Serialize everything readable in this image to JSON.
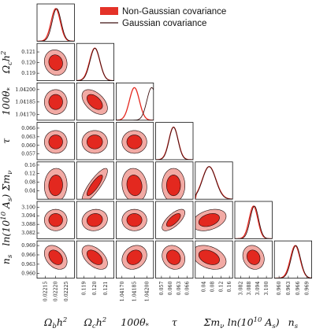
{
  "chart_data": {
    "type": "triangle-plot",
    "title": "",
    "legend": {
      "placement": "top-right",
      "entries": [
        {
          "label": "Non-Gaussian covariance",
          "style": "filled-box",
          "color": "#e43228"
        },
        {
          "label": "Gaussian covariance",
          "style": "line",
          "color": "#5a1616"
        }
      ]
    },
    "colors": {
      "inner_fill": "#e3281f",
      "outer_fill": "#f2aaa4",
      "contour_line": "#1a0808",
      "ng_curve": "#e5281f",
      "g_curve": "#3d1010"
    },
    "parameters": [
      {
        "label": "Ω_b h^2",
        "label_text": "Ωbh2",
        "ticks": [
          "0.02215",
          "0.02220",
          "0.02225"
        ],
        "tick_values": [
          0.02215,
          0.0222,
          0.02225
        ],
        "range": [
          0.02211,
          0.02229
        ],
        "mean": 0.0222,
        "sigma": 2.2e-05
      },
      {
        "label": "Ω_c h^2",
        "label_text": "Ωch2",
        "ticks": [
          "0.119",
          "0.120",
          "0.121"
        ],
        "tick_values": [
          0.119,
          0.12,
          0.121
        ],
        "range": [
          0.1183,
          0.1218
        ],
        "mean": 0.12,
        "sigma": 0.00048
      },
      {
        "label": "100θ_*",
        "label_text": "100θ*",
        "ticks": [
          "1.04170",
          "1.04185",
          "1.04200"
        ],
        "tick_values": [
          1.0417,
          1.04185,
          1.042
        ],
        "range": [
          1.04163,
          1.04208
        ],
        "mean": 1.04185,
        "sigma": 6e-05
      },
      {
        "label": "τ",
        "label_text": "τ",
        "ticks": [
          "0.057",
          "0.060",
          "0.063",
          "0.066"
        ],
        "tick_values": [
          0.057,
          0.06,
          0.063,
          0.066
        ],
        "range": [
          0.055,
          0.068
        ],
        "mean": 0.0612,
        "sigma": 0.0016
      },
      {
        "label": "Σm_ν",
        "label_text": "Σmν",
        "ticks": [
          "0.04",
          "0.08",
          "0.12",
          "0.16"
        ],
        "tick_values": [
          0.04,
          0.08,
          0.12,
          0.16
        ],
        "range": [
          0.0,
          0.175
        ],
        "mean": 0.065,
        "sigma": 0.032
      },
      {
        "label": "ln(10^10 A_s)",
        "label_text": "ln(1010As)",
        "ticks": [
          "3.082",
          "3.088",
          "3.094",
          "3.100"
        ],
        "tick_values": [
          3.082,
          3.088,
          3.094,
          3.1
        ],
        "range": [
          3.078,
          3.104
        ],
        "mean": 3.091,
        "sigma": 0.003
      },
      {
        "label": "n_s",
        "label_text": "ns",
        "ticks": [
          "0.960",
          "0.963",
          "0.966",
          "0.969"
        ],
        "tick_values": [
          0.96,
          0.963,
          0.966,
          0.969
        ],
        "range": [
          0.9585,
          0.9705
        ],
        "mean": 0.9652,
        "sigma": 0.00155
      }
    ],
    "correlations": {
      "1-0": -0.1,
      "2-0": 0.0,
      "2-1": -0.5,
      "3-0": 0.0,
      "3-1": 0.0,
      "3-2": 0.0,
      "4-0": 0.05,
      "4-1": 0.85,
      "4-2": -0.1,
      "4-3": 0.0,
      "5-0": 0.0,
      "5-1": 0.1,
      "5-2": 0.0,
      "5-3": 0.7,
      "5-4": 0.35,
      "6-0": -0.35,
      "6-1": -0.5,
      "6-2": 0.2,
      "6-3": -0.15,
      "6-4": -0.35,
      "6-5": -0.15
    }
  }
}
